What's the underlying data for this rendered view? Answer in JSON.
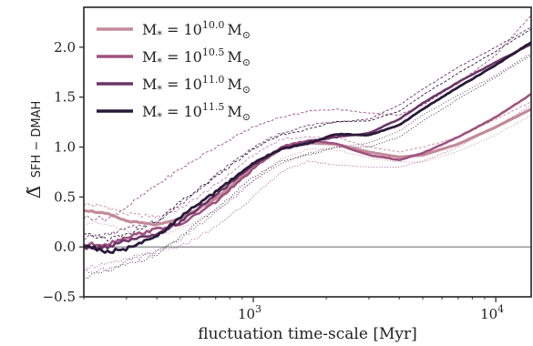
{
  "chart_data": {
    "type": "line",
    "xlabel": "fluctuation time-scale [Myr]",
    "ylabel": "Δ̃ SFH − DMAH",
    "ylabel_main": "Δ̃",
    "ylabel_sub": "SFH − DMAH",
    "xscale": "log",
    "xlim": [
      200,
      14000
    ],
    "ylim": [
      -0.5,
      2.4
    ],
    "x_ticks": [
      {
        "value": 1000,
        "base": "10",
        "exp": "3"
      },
      {
        "value": 10000,
        "base": "10",
        "exp": "4"
      }
    ],
    "y_ticks": [
      {
        "value": -0.5,
        "label": "−0.5"
      },
      {
        "value": 0.0,
        "label": "0.0"
      },
      {
        "value": 0.5,
        "label": "0.5"
      },
      {
        "value": 1.0,
        "label": "1.0"
      },
      {
        "value": 1.5,
        "label": "1.5"
      },
      {
        "value": 2.0,
        "label": "2.0"
      }
    ],
    "reference_line": {
      "y": 0.0,
      "color": "#777777"
    },
    "legend": {
      "position": "top-left"
    },
    "series": [
      {
        "key": "m100",
        "legend_pre": "M",
        "legend_sub": "*",
        "legend_mid": " = 10",
        "legend_sup": "10.0",
        "legend_post": "M",
        "legend_post_sub": "⊙",
        "color": "#c48a9a",
        "width": 3.2,
        "x": [
          200,
          250,
          300,
          400,
          500,
          700,
          1000,
          1300,
          1700,
          2200,
          3000,
          4000,
          5000,
          7000,
          10000,
          14000
        ],
        "y": [
          0.37,
          0.33,
          0.26,
          0.22,
          0.28,
          0.48,
          0.8,
          0.98,
          1.04,
          1.03,
          0.95,
          0.9,
          0.92,
          1.03,
          1.2,
          1.38
        ],
        "band_upper": [
          0.43,
          0.4,
          0.33,
          0.3,
          0.38,
          0.62,
          0.92,
          1.08,
          1.1,
          1.1,
          1.0,
          0.95,
          1.0,
          1.1,
          1.28,
          1.45
        ],
        "band_lower": [
          0.25,
          0.22,
          0.15,
          0.12,
          0.18,
          0.36,
          0.66,
          0.88,
          0.98,
          0.97,
          0.89,
          0.85,
          0.85,
          0.96,
          1.12,
          1.32
        ]
      },
      {
        "key": "m105",
        "legend_pre": "M",
        "legend_sub": "*",
        "legend_mid": " = 10",
        "legend_sup": "10.5",
        "legend_post": "M",
        "legend_post_sub": "⊙",
        "color": "#a0527e",
        "width": 2.6,
        "x": [
          200,
          250,
          300,
          400,
          500,
          700,
          1000,
          1300,
          1700,
          2200,
          3000,
          4000,
          5000,
          7000,
          10000,
          14000
        ],
        "y": [
          0.02,
          0.03,
          0.1,
          0.18,
          0.22,
          0.45,
          0.78,
          1.0,
          1.07,
          1.03,
          0.92,
          0.87,
          0.94,
          1.1,
          1.3,
          1.53
        ],
        "band_upper": [
          0.3,
          0.28,
          0.4,
          0.62,
          0.78,
          1.0,
          1.2,
          1.3,
          1.36,
          1.38,
          1.34,
          1.32,
          1.42,
          1.64,
          1.92,
          2.32
        ],
        "band_lower": [
          -0.2,
          -0.18,
          -0.12,
          -0.05,
          0.0,
          0.2,
          0.5,
          0.75,
          0.86,
          0.82,
          0.8,
          0.8,
          0.86,
          1.0,
          1.2,
          1.42
        ]
      },
      {
        "key": "m110",
        "legend_pre": "M",
        "legend_sub": "*",
        "legend_mid": " = 10",
        "legend_sup": "11.0",
        "legend_post": "M",
        "legend_post_sub": "⊙",
        "color": "#6b3566",
        "width": 2.6,
        "x": [
          200,
          250,
          300,
          400,
          500,
          700,
          1000,
          1300,
          1700,
          2200,
          3000,
          4000,
          5000,
          7000,
          10000,
          14000
        ],
        "y": [
          -0.02,
          0.0,
          0.06,
          0.12,
          0.25,
          0.52,
          0.82,
          0.98,
          1.06,
          1.1,
          1.14,
          1.28,
          1.44,
          1.65,
          1.85,
          2.03
        ],
        "band_upper": [
          0.1,
          0.12,
          0.18,
          0.26,
          0.42,
          0.72,
          1.0,
          1.14,
          1.22,
          1.25,
          1.28,
          1.42,
          1.58,
          1.8,
          2.0,
          2.2
        ],
        "band_lower": [
          -0.25,
          -0.22,
          -0.15,
          -0.05,
          0.08,
          0.34,
          0.66,
          0.84,
          0.94,
          1.0,
          1.04,
          1.16,
          1.32,
          1.52,
          1.72,
          1.94
        ]
      },
      {
        "key": "m115",
        "legend_pre": "M",
        "legend_sub": "*",
        "legend_mid": " = 10",
        "legend_sup": "11.5",
        "legend_post": "M",
        "legend_post_sub": "⊙",
        "color": "#2a1a3a",
        "width": 2.8,
        "x": [
          200,
          250,
          300,
          400,
          500,
          700,
          1000,
          1300,
          1700,
          2200,
          3000,
          4000,
          5000,
          7000,
          10000,
          14000
        ],
        "y": [
          0.02,
          -0.05,
          -0.02,
          0.1,
          0.3,
          0.55,
          0.84,
          0.98,
          1.04,
          1.13,
          1.12,
          1.22,
          1.38,
          1.6,
          1.82,
          2.05
        ],
        "band_upper": [
          0.12,
          0.08,
          0.12,
          0.25,
          0.45,
          0.7,
          0.98,
          1.12,
          1.18,
          1.26,
          1.26,
          1.36,
          1.52,
          1.74,
          1.96,
          2.18
        ],
        "band_lower": [
          -0.3,
          -0.25,
          -0.18,
          -0.08,
          0.1,
          0.38,
          0.7,
          0.86,
          0.92,
          1.0,
          1.0,
          1.1,
          1.26,
          1.48,
          1.7,
          1.92
        ]
      }
    ]
  }
}
